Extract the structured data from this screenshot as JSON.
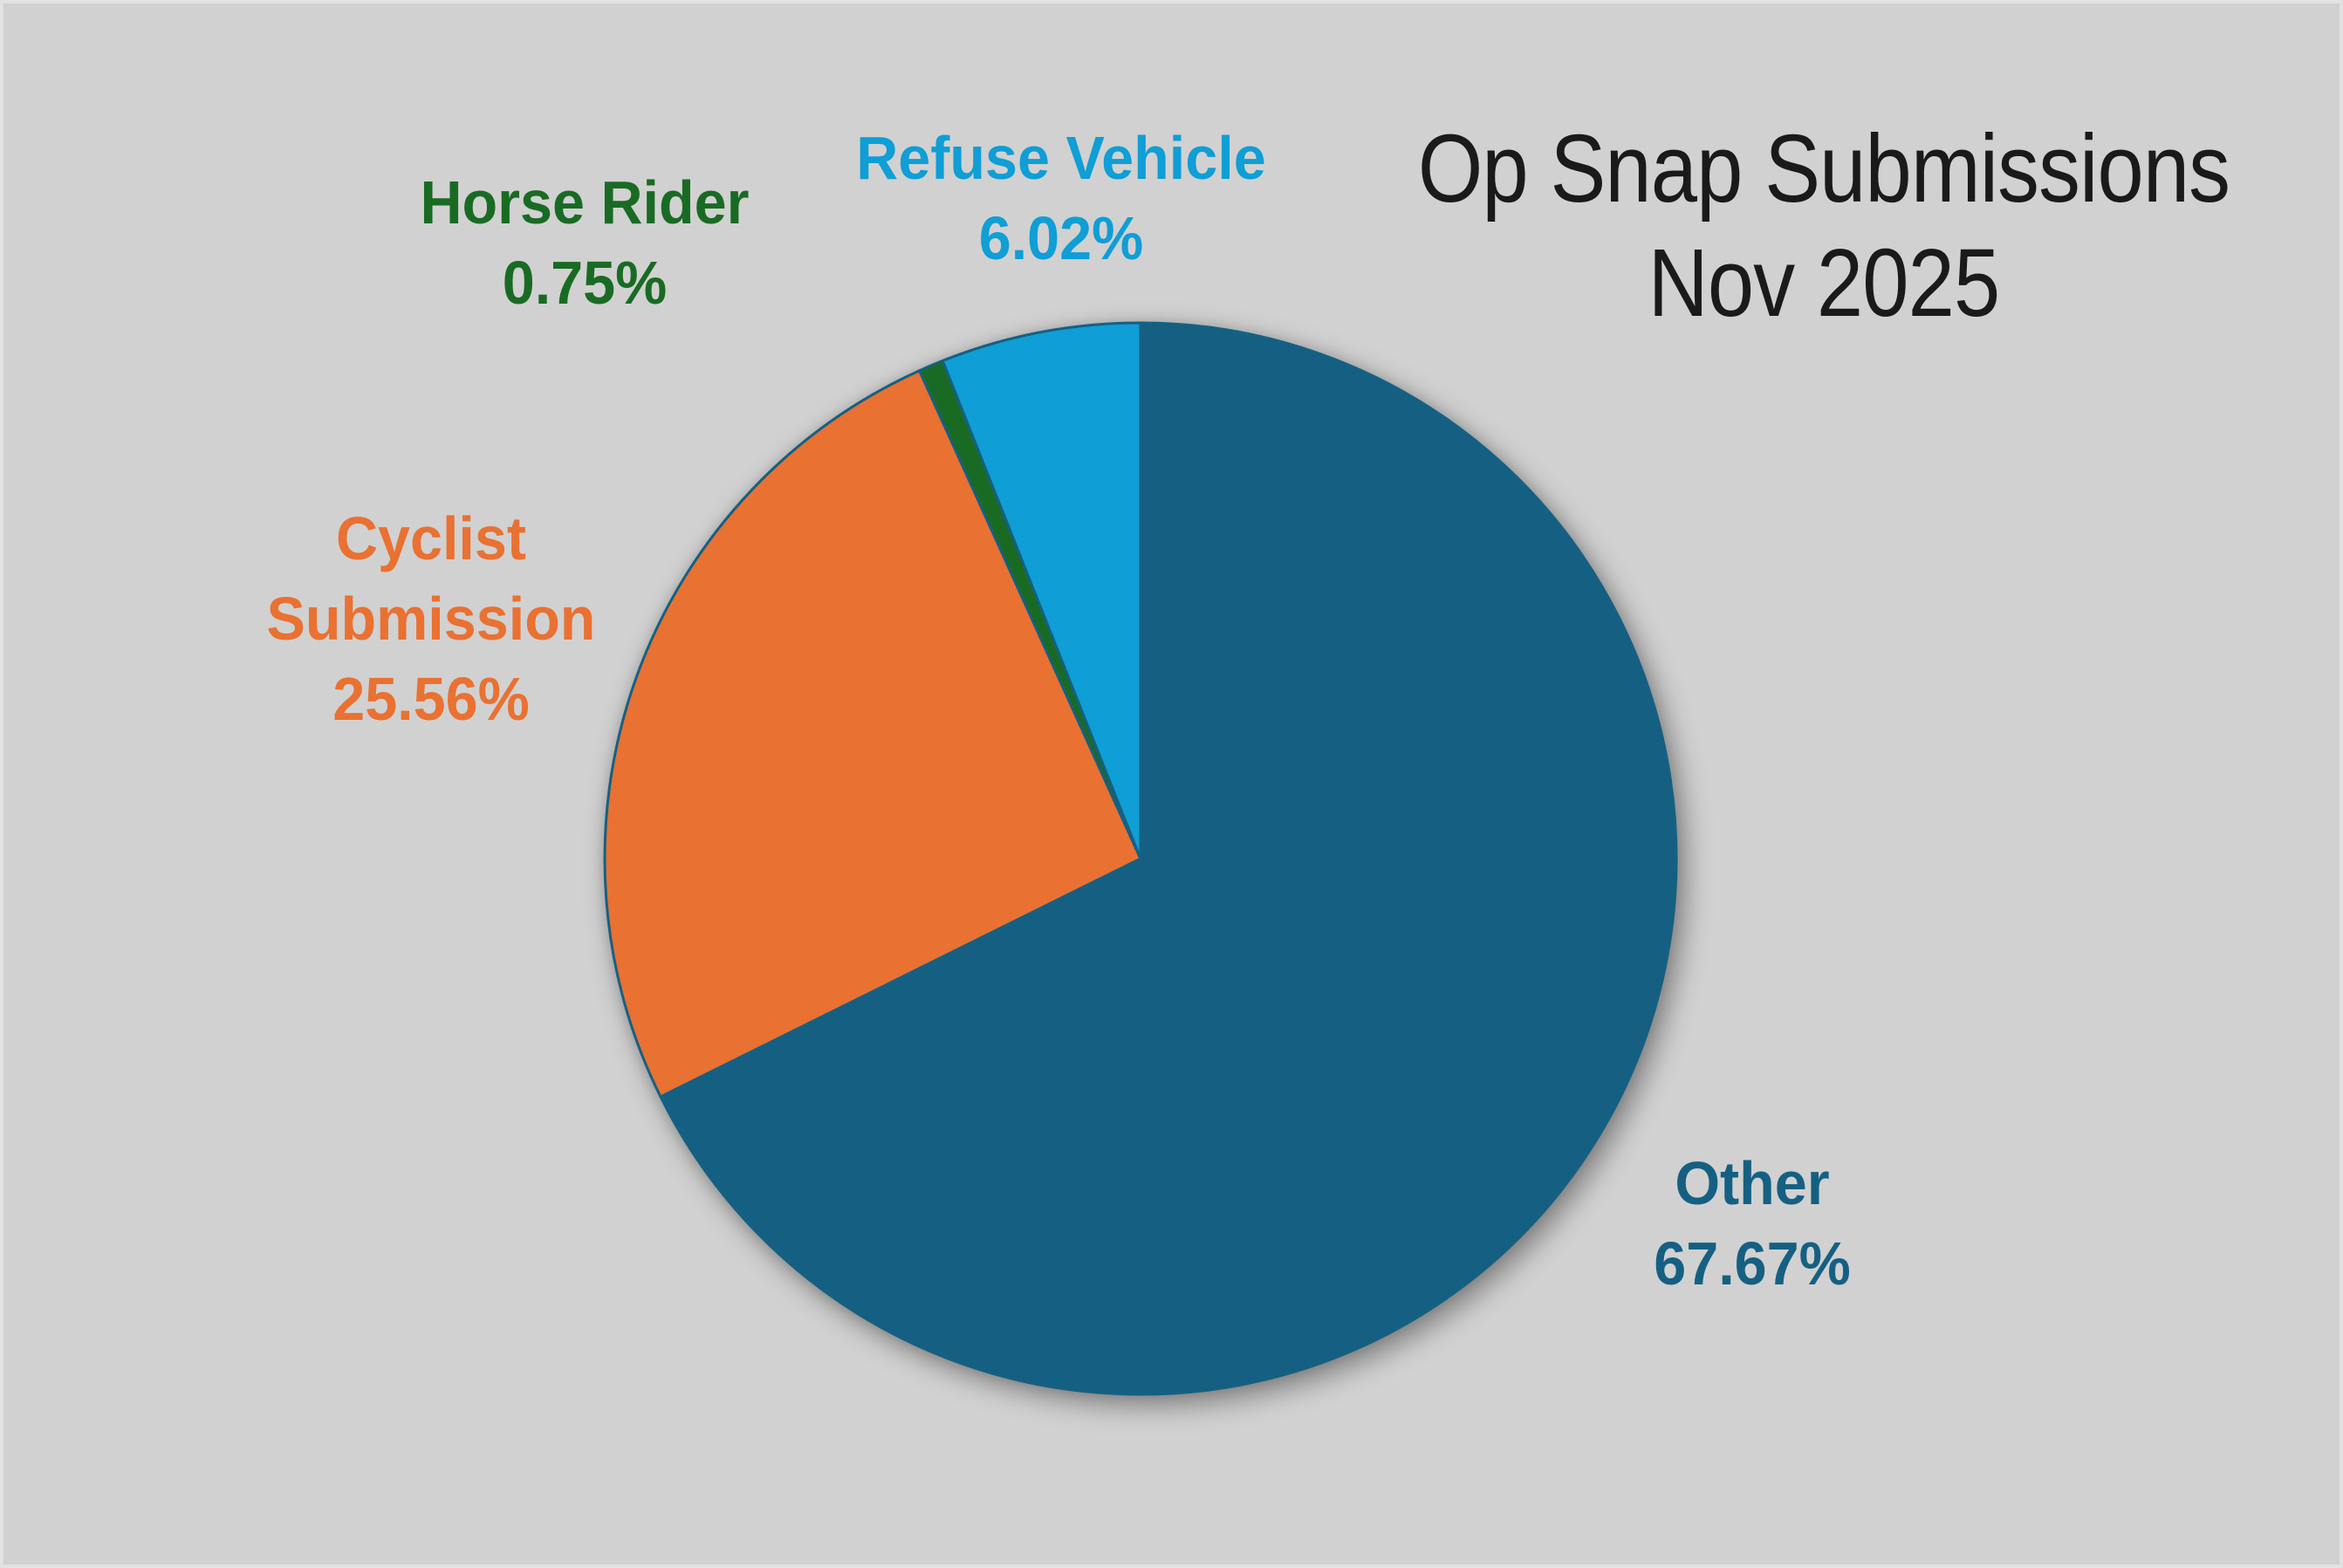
{
  "page": {
    "background_color": "#d1d1d1",
    "frame_edge_color": "#e2e2e2"
  },
  "title": {
    "line1": "Op Snap Submissions",
    "line2": "Nov 2025",
    "color": "#1a1a1a"
  },
  "chart_data": {
    "type": "pie",
    "title": "Op Snap Submissions Nov 2025",
    "legend": "none",
    "start_angle_deg": 0,
    "direction": "clockwise",
    "stroke_color": "#156082",
    "stroke_width": 3,
    "labels_style": "outside text colored to match slice",
    "slices": [
      {
        "id": "other",
        "label": "Other",
        "pct": 67.67,
        "display_pct": "67.67%",
        "color": "#156082"
      },
      {
        "id": "cyclist-submission",
        "label": "Cyclist Submission",
        "pct": 25.56,
        "display_pct": "25.56%",
        "color": "#E97132"
      },
      {
        "id": "horse-rider",
        "label": "Horse Rider",
        "pct": 0.75,
        "display_pct": "0.75%",
        "color": "#196B24"
      },
      {
        "id": "refuse-vehicle",
        "label": "Refuse Vehicle",
        "pct": 6.02,
        "display_pct": "6.02%",
        "color": "#0F9ED5"
      }
    ]
  }
}
